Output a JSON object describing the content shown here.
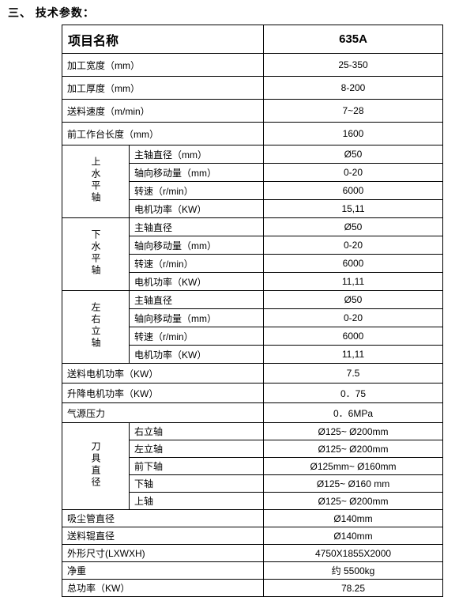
{
  "title": "三、 技术参数：",
  "table": {
    "header": {
      "item": "项目名称",
      "model": "635A"
    },
    "rows": [
      {
        "kind": "item",
        "group": "primary",
        "item": "加工宽度（mm）",
        "value": "25-350"
      },
      {
        "kind": "item",
        "group": "primary",
        "item": "加工厚度（mm）",
        "value": "8-200"
      },
      {
        "kind": "item",
        "group": "primary",
        "item": "送料速度（m/min）",
        "value": "7~28"
      },
      {
        "kind": "item",
        "group": "primary",
        "item": "前工作台长度（mm）",
        "value": "1600"
      },
      {
        "kind": "section",
        "group": "spindle",
        "label": "上水平轴",
        "subrows": [
          {
            "item": "主轴直径（mm）",
            "value": "Ø50"
          },
          {
            "item": "轴向移动量（mm）",
            "value": "0-20"
          },
          {
            "item": "转速（r/min）",
            "value": "6000"
          },
          {
            "item": "电机功率（KW）",
            "value": "15,11"
          }
        ]
      },
      {
        "kind": "section",
        "group": "spindle",
        "label": "下水平轴",
        "subrows": [
          {
            "item": "主轴直径",
            "value": "Ø50"
          },
          {
            "item": "轴向移动量（mm）",
            "value": "0-20"
          },
          {
            "item": "转速（r/min）",
            "value": "6000"
          },
          {
            "item": "电机功率（KW）",
            "value": "11,11"
          }
        ]
      },
      {
        "kind": "section",
        "group": "spindle",
        "label": "左右立轴",
        "subrows": [
          {
            "item": "主轴直径",
            "value": "Ø50"
          },
          {
            "item": "轴向移动量（mm）",
            "value": "0-20"
          },
          {
            "item": "转速（r/min）",
            "value": "6000"
          },
          {
            "item": "电机功率（KW）",
            "value": "11,11"
          }
        ]
      },
      {
        "kind": "item",
        "group": "power",
        "item": "送料电机功率（KW）",
        "value": "7.5"
      },
      {
        "kind": "item",
        "group": "power",
        "item": "升降电机功率（KW）",
        "value": "0．75"
      },
      {
        "kind": "item",
        "group": "power",
        "item": "气源压力",
        "value": "0．6MPa"
      },
      {
        "kind": "section",
        "group": "cutter",
        "label": "刀具直径",
        "subrows": [
          {
            "item": "右立轴",
            "value": "Ø125~ Ø200mm"
          },
          {
            "item": "左立轴",
            "value": "Ø125~ Ø200mm"
          },
          {
            "item": "前下轴",
            "value": "Ø125mm~ Ø160mm"
          },
          {
            "item": "下轴",
            "value": "Ø125~ Ø160 mm"
          },
          {
            "item": "上轴",
            "value": "Ø125~ Ø200mm"
          }
        ]
      },
      {
        "kind": "item",
        "group": "general",
        "item": "吸尘管直径",
        "value": "Ø140mm"
      },
      {
        "kind": "item",
        "group": "general",
        "item": "送料辊直径",
        "value": "Ø140mm"
      },
      {
        "kind": "item",
        "group": "general",
        "item": "外形尺寸(LXWXH)",
        "value": "4750X1855X2000"
      },
      {
        "kind": "item",
        "group": "general",
        "item": "净重",
        "value": "约 5500kg"
      },
      {
        "kind": "item",
        "group": "general",
        "item": "总功率（KW）",
        "value": "78.25"
      }
    ]
  }
}
